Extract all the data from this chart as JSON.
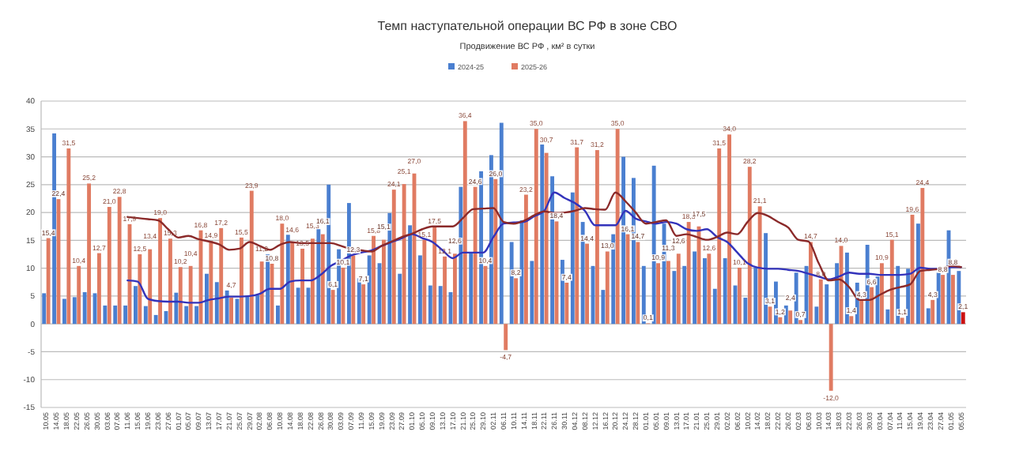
{
  "chart_data": {
    "type": "bar",
    "title": "Темп наступательной операции ВС РФ в зоне СВО",
    "subtitle": "Продвижение ВС РФ , км² в сутки",
    "categories": [
      "10.05",
      "14.05",
      "18.05",
      "22.05",
      "26.05",
      "30.05",
      "03.06",
      "07.06",
      "11.06",
      "15.06",
      "19.06",
      "23.06",
      "27.06",
      "01.07",
      "05.07",
      "09.07",
      "13.07",
      "17.07",
      "21.07",
      "25.07",
      "29.07",
      "02.08",
      "06.08",
      "10.08",
      "14.08",
      "18.08",
      "22.08",
      "26.08",
      "30.08",
      "03.09",
      "07.09",
      "11.09",
      "15.09",
      "19.09",
      "23.09",
      "27.09",
      "01.10",
      "05.10",
      "09.10",
      "13.10",
      "17.10",
      "21.10",
      "25.10",
      "29.10",
      "02.11",
      "06.11",
      "10.11",
      "14.11",
      "18.11",
      "22.11",
      "26.11",
      "30.11",
      "04.12",
      "08.12",
      "12.12",
      "16.12",
      "20.12",
      "24.12",
      "28.12",
      "01.01",
      "05.01",
      "09.01",
      "13.01",
      "17.01",
      "21.01",
      "25.01",
      "29.01",
      "02.02",
      "06.02",
      "10.02",
      "14.02",
      "18.02",
      "22.02",
      "26.02",
      "02.03",
      "06.03",
      "10.03",
      "14.03",
      "18.03",
      "22.03",
      "26.03",
      "30.03",
      "03.04",
      "07.04",
      "11.04",
      "15.04",
      "19.04",
      "23.04",
      "27.04",
      "01.05",
      "05.05"
    ],
    "series": [
      {
        "name": "2024-25",
        "color": "#4a7fd0",
        "values": [
          5.5,
          34.2,
          4.5,
          4.8,
          5.7,
          5.5,
          3.3,
          3.3,
          3.3,
          6.8,
          3.2,
          1.6,
          2.3,
          5.6,
          3.2,
          3.2,
          9.0,
          7.5,
          6.0,
          4.5,
          5.0,
          5.2,
          12.5,
          3.3,
          16.0,
          6.5,
          6.5,
          17.0,
          25.0,
          13.4,
          21.7,
          8.2,
          12.3,
          10.9,
          19.9,
          9.0,
          17.7,
          12.3,
          6.9,
          6.8,
          5.7,
          24.6,
          12.8,
          27.4,
          30.3,
          36.1,
          14.7,
          18.6,
          11.3,
          32.2,
          26.5,
          11.5,
          23.6,
          18.3,
          10.4,
          6.1,
          16.1,
          30.0,
          26.2,
          10.4,
          28.4,
          18.0,
          9.5,
          10.4,
          13.0,
          11.8,
          6.3,
          11.8,
          6.9,
          4.7,
          10.1,
          16.3,
          7.6,
          3.3,
          9.2,
          10.4,
          3.1,
          7.1,
          10.9,
          12.8,
          7.4,
          14.2,
          8.5,
          2.6,
          10.4,
          9.9,
          18.0,
          2.8,
          9.2,
          16.8,
          9.5
        ]
      },
      {
        "name": "2025-26",
        "color": "#e07b62",
        "values": [
          15.4,
          22.4,
          31.5,
          10.4,
          25.2,
          12.7,
          21.0,
          22.8,
          17.9,
          12.5,
          13.4,
          19.0,
          15.3,
          10.2,
          10.4,
          16.8,
          14.9,
          17.2,
          4.7,
          15.5,
          23.9,
          11.2,
          10.8,
          18.0,
          14.6,
          13.5,
          15.3,
          16.1,
          6.1,
          10.1,
          12.3,
          7.1,
          15.8,
          15.1,
          24.1,
          25.1,
          27.0,
          15.1,
          17.5,
          12.1,
          12.6,
          36.4,
          24.6,
          10.4,
          26.0,
          -4.7,
          8.2,
          23.2,
          35.0,
          30.7,
          18.4,
          7.4,
          31.7,
          14.4,
          31.2,
          13.0,
          35.0,
          16.1,
          14.7,
          0.1,
          10.9,
          11.3,
          12.6,
          18.3,
          17.5,
          12.6,
          31.5,
          34.0,
          10.1,
          28.2,
          21.1,
          3.1,
          1.2,
          2.4,
          0.7,
          14.7,
          8.0,
          -12.0,
          14.0,
          1.4,
          4.3,
          6.6,
          10.9,
          15.1,
          1.1,
          19.6,
          24.4,
          4.3,
          8.8,
          8.8,
          2.1
        ],
        "colors": [
          "#e07b62",
          "#e07b62",
          "#e07b62",
          "#e07b62",
          "#e07b62",
          "#e07b62",
          "#e07b62",
          "#e07b62",
          "#e07b62",
          "#e07b62",
          "#e07b62",
          "#e07b62",
          "#e07b62",
          "#e07b62",
          "#e07b62",
          "#e07b62",
          "#e07b62",
          "#e07b62",
          "#e07b62",
          "#e07b62",
          "#e07b62",
          "#e07b62",
          "#e07b62",
          "#e07b62",
          "#e07b62",
          "#e07b62",
          "#e07b62",
          "#e07b62",
          "#e07b62",
          "#e07b62",
          "#e07b62",
          "#e07b62",
          "#e07b62",
          "#e07b62",
          "#e07b62",
          "#e07b62",
          "#e07b62",
          "#e07b62",
          "#e07b62",
          "#e07b62",
          "#e07b62",
          "#e07b62",
          "#e07b62",
          "#e07b62",
          "#e07b62",
          "#e07b62",
          "#e07b62",
          "#e07b62",
          "#e07b62",
          "#e07b62",
          "#e07b62",
          "#e07b62",
          "#e07b62",
          "#e07b62",
          "#e07b62",
          "#e07b62",
          "#e07b62",
          "#e07b62",
          "#e07b62",
          "#e07b62",
          "#e07b62",
          "#e07b62",
          "#e07b62",
          "#e07b62",
          "#e07b62",
          "#e07b62",
          "#e07b62",
          "#e07b62",
          "#e07b62",
          "#e07b62",
          "#e07b62",
          "#e07b62",
          "#e07b62",
          "#e07b62",
          "#e07b62",
          "#e07b62",
          "#e07b62",
          "#e07b62",
          "#e07b62",
          "#e07b62",
          "#e07b62",
          "#e07b62",
          "#e07b62",
          "#e07b62",
          "#e07b62",
          "#e07b62",
          "#e07b62",
          "#e07b62",
          "#e07b62",
          "#e07b62",
          "#cc1111"
        ],
        "value_labels": [
          "15,4",
          "22,4",
          "31,5",
          "10,4",
          "25,2",
          "12,7",
          "21,0",
          "22,8",
          "17,9",
          "12,5",
          "13,4",
          "19,0",
          "15,3",
          "10,2",
          "10,4",
          "16,8",
          "14,9",
          "17,2",
          "4,7",
          "15,5",
          "23,9",
          "11,2",
          "10,8",
          "18,0",
          "14,6",
          "13,5",
          "15,3",
          "16,1",
          "6,1",
          "10,1",
          "12,3",
          "7,1",
          "15,8",
          "15,1",
          "24,1",
          "25,1",
          "27,0",
          "15,1",
          "17,5",
          "12,1",
          "12,6",
          "36,4",
          "24,6",
          "10,4",
          "26,0",
          "-4,7",
          "8,2",
          "23,2",
          "35,0",
          "30,7",
          "18,4",
          "7,4",
          "31,7",
          "14,4",
          "31,2",
          "13,0",
          "35,0",
          "16,1",
          "14,7",
          "0,1",
          "10,9",
          "11,3",
          "12,6",
          "18,3",
          "17,5",
          "12,6",
          "31,5",
          "34,0",
          "10,1",
          "28,2",
          "21,1",
          "3,1",
          "1,2",
          "2,4",
          "0,7",
          "14,7",
          "8,0",
          "-12,0",
          "14,0",
          "1,4",
          "4,3",
          "6,6",
          "10,9",
          "15,1",
          "1,1",
          "19,6",
          "24,4",
          "4,3",
          "8,8",
          "8,8",
          "2,1"
        ]
      },
      {
        "type": "line",
        "color": "#3333bb",
        "values": [
          null,
          null,
          null,
          null,
          null,
          null,
          null,
          null,
          7.8,
          7.6,
          4.5,
          4.1,
          4.0,
          4.0,
          3.8,
          3.8,
          4.3,
          4.6,
          4.9,
          4.9,
          5.0,
          5.4,
          6.3,
          6.3,
          7.6,
          7.8,
          7.8,
          8.8,
          10.4,
          11.3,
          12.3,
          12.8,
          13.2,
          14.0,
          14.7,
          15.4,
          16.1,
          15.4,
          14.7,
          13.2,
          11.8,
          12.8,
          12.8,
          12.8,
          15.6,
          18.0,
          18.2,
          18.3,
          19.3,
          20.3,
          23.6,
          22.6,
          21.7,
          20.3,
          17.7,
          17.7,
          17.7,
          20.3,
          18.9,
          18.4,
          18.0,
          18.3,
          18.0,
          17.0,
          16.7,
          17.0,
          15.6,
          14.7,
          12.8,
          10.9,
          10.1,
          9.9,
          9.9,
          9.7,
          9.5,
          9.0,
          8.5,
          8.0,
          8.5,
          9.2,
          9.0,
          9.0,
          8.8,
          8.8,
          8.8,
          9.0,
          10.1,
          9.9,
          9.9,
          10.2,
          10.2
        ]
      },
      {
        "type": "line",
        "color": "#8b2a2a",
        "values": [
          null,
          null,
          null,
          null,
          null,
          null,
          null,
          null,
          19.2,
          19.0,
          18.8,
          18.6,
          17.0,
          15.5,
          15.8,
          15.2,
          14.8,
          14.3,
          13.3,
          13.5,
          14.7,
          14.0,
          13.3,
          14.2,
          14.7,
          14.5,
          14.5,
          14.5,
          14.5,
          14.0,
          13.4,
          13.2,
          13.0,
          14.0,
          14.8,
          15.6,
          16.2,
          17.0,
          17.5,
          17.5,
          17.5,
          19.0,
          20.6,
          20.7,
          20.8,
          18.3,
          18.0,
          18.5,
          19.5,
          20.2,
          19.9,
          20.0,
          20.3,
          20.8,
          20.6,
          20.5,
          23.6,
          22.0,
          20.0,
          18.0,
          18.3,
          18.6,
          15.8,
          16.1,
          15.6,
          15.1,
          15.6,
          16.4,
          16.1,
          18.3,
          19.9,
          19.4,
          18.3,
          17.3,
          15.1,
          14.8,
          10.9,
          7.8,
          8.0,
          6.6,
          4.3,
          4.3,
          5.2,
          6.1,
          6.6,
          7.1,
          9.5,
          9.7,
          9.9,
          10.4,
          10.2
        ]
      }
    ],
    "ylim": [
      -15,
      40
    ],
    "yticks": [
      -15,
      -10,
      -5,
      0,
      5,
      10,
      15,
      20,
      25,
      30,
      35,
      40
    ],
    "grid": "y",
    "legend": "top"
  }
}
